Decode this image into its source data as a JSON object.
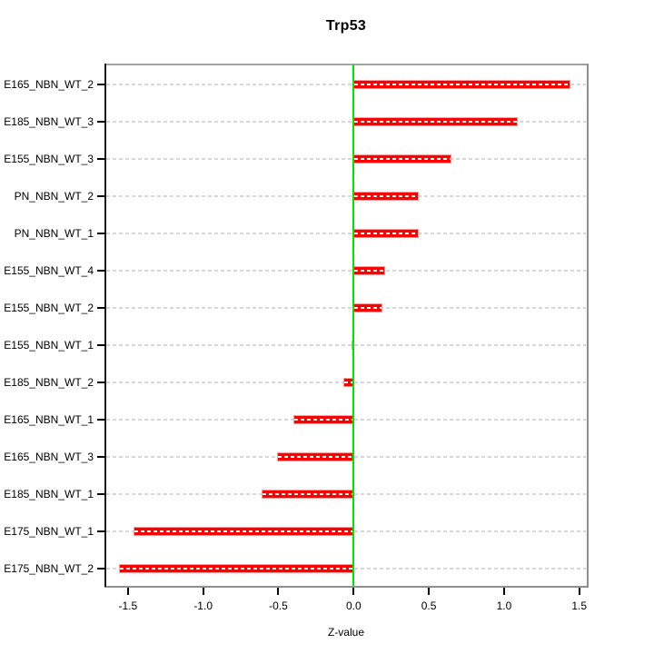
{
  "chart_data": {
    "type": "bar",
    "orientation": "horizontal",
    "title": "Trp53",
    "xlabel": "Z-value",
    "ylabel": "",
    "categories": [
      "E165_NBN_WT_2",
      "E185_NBN_WT_3",
      "E155_NBN_WT_3",
      "PN_NBN_WT_2",
      "PN_NBN_WT_1",
      "E155_NBN_WT_4",
      "E155_NBN_WT_2",
      "E155_NBN_WT_1",
      "E185_NBN_WT_2",
      "E165_NBN_WT_1",
      "E165_NBN_WT_3",
      "E185_NBN_WT_1",
      "E175_NBN_WT_1",
      "E175_NBN_WT_2"
    ],
    "values": [
      1.44,
      1.09,
      0.65,
      0.43,
      0.43,
      0.21,
      0.19,
      -0.01,
      -0.07,
      -0.4,
      -0.51,
      -0.61,
      -1.46,
      -1.56
    ],
    "xlim": [
      -1.65,
      1.55
    ],
    "xticks": [
      -1.5,
      -1.0,
      -0.5,
      0.0,
      0.5,
      1.0,
      1.5
    ],
    "xtick_labels": [
      "-1.5",
      "-1.0",
      "-0.5",
      "0.0",
      "0.5",
      "1.0",
      "1.5"
    ],
    "grid": true,
    "gridline_style": "dashed",
    "reference_line_x": 0,
    "legend": null,
    "colors": {
      "bar": "#ff0000",
      "bar_edge": "#ff9a9a",
      "bar_inner_dash": "#ffffff",
      "zero_line": "#00e600",
      "gridline": "#d7d7d7",
      "box_top": "#a3a3a3",
      "box_right": "#8f8f8f",
      "box_bottom": "#8f8f8f",
      "y_axis_line": "#1a1a1a",
      "tick": "#000000",
      "text": "#000000",
      "background": "#ffffff"
    }
  }
}
